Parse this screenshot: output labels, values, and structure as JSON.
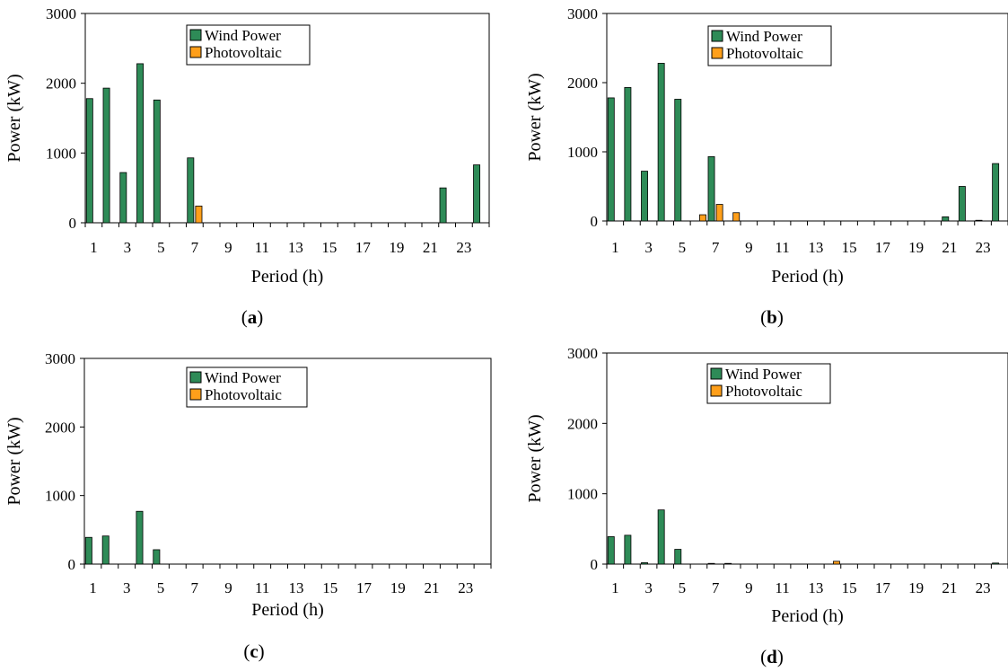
{
  "chart_data": [
    {
      "type": "bar",
      "panel_label": "a",
      "xlabel": "Period (h)",
      "ylabel": "Power (kW)",
      "ylim": [
        0,
        3000
      ],
      "yticks": [
        "0",
        "1000",
        "2000",
        "3000"
      ],
      "xtick_labels": [
        "1",
        "3",
        "5",
        "7",
        "9",
        "11",
        "13",
        "15",
        "17",
        "19",
        "21",
        "23"
      ],
      "categories": [
        1,
        2,
        3,
        4,
        5,
        6,
        7,
        8,
        9,
        10,
        11,
        12,
        13,
        14,
        15,
        16,
        17,
        18,
        19,
        20,
        21,
        22,
        23,
        24
      ],
      "legend_position": "top-center",
      "series": [
        {
          "name": "Wind Power",
          "color": "#2e8b57",
          "values": [
            1780,
            1930,
            720,
            2280,
            1760,
            0,
            930,
            0,
            0,
            0,
            0,
            0,
            0,
            0,
            0,
            0,
            0,
            0,
            0,
            0,
            0,
            500,
            0,
            830
          ]
        },
        {
          "name": "Photovoltaic",
          "color": "#ff9f1a",
          "values": [
            0,
            0,
            0,
            0,
            0,
            0,
            240,
            0,
            0,
            0,
            0,
            0,
            0,
            0,
            0,
            0,
            0,
            0,
            0,
            0,
            0,
            0,
            0,
            0
          ]
        }
      ]
    },
    {
      "type": "bar",
      "panel_label": "b",
      "xlabel": "Period (h)",
      "ylabel": "Power (kW)",
      "ylim": [
        0,
        3000
      ],
      "yticks": [
        "0",
        "1000",
        "2000",
        "3000"
      ],
      "xtick_labels": [
        "1",
        "3",
        "5",
        "7",
        "9",
        "11",
        "13",
        "15",
        "17",
        "19",
        "21",
        "23"
      ],
      "categories": [
        1,
        2,
        3,
        4,
        5,
        6,
        7,
        8,
        9,
        10,
        11,
        12,
        13,
        14,
        15,
        16,
        17,
        18,
        19,
        20,
        21,
        22,
        23,
        24
      ],
      "legend_position": "top-center",
      "series": [
        {
          "name": "Wind Power",
          "color": "#2e8b57",
          "values": [
            1780,
            1930,
            720,
            2280,
            1760,
            0,
            930,
            0,
            0,
            0,
            0,
            0,
            0,
            0,
            0,
            0,
            0,
            0,
            0,
            0,
            60,
            500,
            10,
            830
          ]
        },
        {
          "name": "Photovoltaic",
          "color": "#ff9f1a",
          "values": [
            0,
            0,
            0,
            0,
            0,
            90,
            240,
            120,
            0,
            0,
            0,
            0,
            0,
            0,
            0,
            0,
            0,
            0,
            0,
            0,
            0,
            0,
            0,
            0
          ]
        }
      ]
    },
    {
      "type": "bar",
      "panel_label": "c",
      "xlabel": "Period (h)",
      "ylabel": "Power (kW)",
      "ylim": [
        0,
        3000
      ],
      "yticks": [
        "0",
        "1000",
        "2000",
        "3000"
      ],
      "xtick_labels": [
        "1",
        "3",
        "5",
        "7",
        "9",
        "11",
        "13",
        "15",
        "17",
        "19",
        "21",
        "23"
      ],
      "categories": [
        1,
        2,
        3,
        4,
        5,
        6,
        7,
        8,
        9,
        10,
        11,
        12,
        13,
        14,
        15,
        16,
        17,
        18,
        19,
        20,
        21,
        22,
        23,
        24
      ],
      "legend_position": "top-center",
      "series": [
        {
          "name": "Wind Power",
          "color": "#2e8b57",
          "values": [
            390,
            410,
            0,
            770,
            210,
            0,
            0,
            0,
            0,
            0,
            0,
            0,
            0,
            0,
            0,
            0,
            0,
            0,
            0,
            0,
            0,
            0,
            0,
            0
          ]
        },
        {
          "name": "Photovoltaic",
          "color": "#ff9f1a",
          "values": [
            0,
            0,
            0,
            0,
            0,
            0,
            0,
            0,
            0,
            0,
            0,
            0,
            0,
            0,
            0,
            0,
            0,
            0,
            0,
            0,
            0,
            0,
            0,
            0
          ]
        }
      ]
    },
    {
      "type": "bar",
      "panel_label": "d",
      "xlabel": "Period (h)",
      "ylabel": "Power (kW)",
      "ylim": [
        0,
        3000
      ],
      "yticks": [
        "0",
        "1000",
        "2000",
        "3000"
      ],
      "xtick_labels": [
        "1",
        "3",
        "5",
        "7",
        "9",
        "11",
        "13",
        "15",
        "17",
        "19",
        "21",
        "23"
      ],
      "categories": [
        1,
        2,
        3,
        4,
        5,
        6,
        7,
        8,
        9,
        10,
        11,
        12,
        13,
        14,
        15,
        16,
        17,
        18,
        19,
        20,
        21,
        22,
        23,
        24
      ],
      "legend_position": "top-center",
      "series": [
        {
          "name": "Wind Power",
          "color": "#2e8b57",
          "values": [
            390,
            410,
            20,
            770,
            210,
            0,
            10,
            10,
            0,
            0,
            0,
            0,
            0,
            0,
            0,
            0,
            0,
            0,
            0,
            0,
            0,
            0,
            0,
            15
          ]
        },
        {
          "name": "Photovoltaic",
          "color": "#ff9f1a",
          "values": [
            0,
            0,
            0,
            0,
            0,
            0,
            0,
            0,
            0,
            0,
            0,
            0,
            0,
            40,
            0,
            0,
            0,
            0,
            0,
            0,
            0,
            0,
            0,
            0
          ]
        }
      ]
    }
  ]
}
